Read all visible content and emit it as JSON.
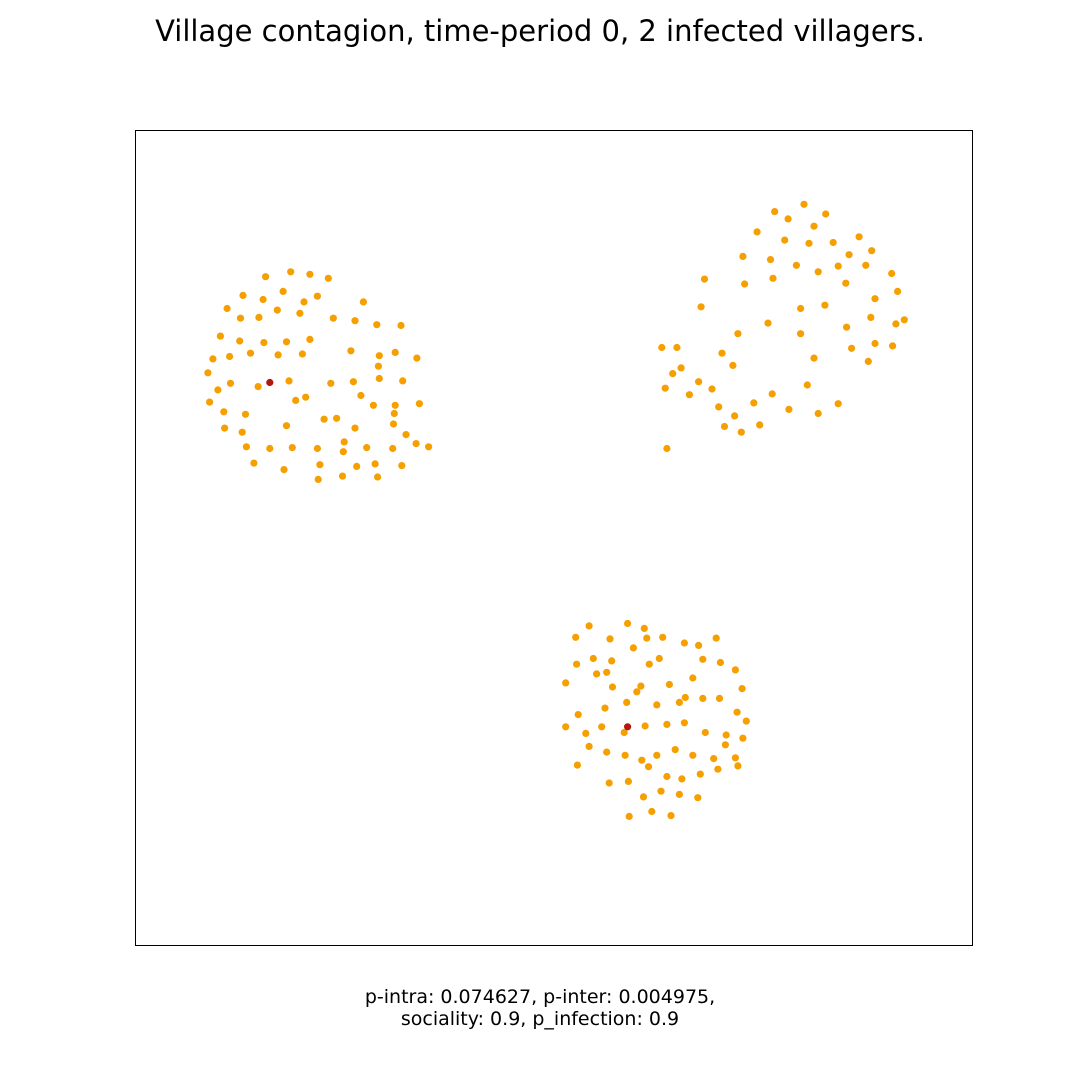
{
  "title": "Village contagion, time-period 0, 2 infected villagers.",
  "caption": {
    "line1": "p-intra: 0.074627, p-inter: 0.004975,",
    "line2": "sociality: 0.9, p_infection: 0.9"
  },
  "colors": {
    "healthy": "#f5a000",
    "infected": "#b2180e",
    "frame": "#000000"
  },
  "chart_data": {
    "type": "scatter",
    "title": "Village contagion, time-period 0, 2 infected villagers.",
    "grid": false,
    "axes_visible": false,
    "xlim": [
      0,
      100
    ],
    "ylim": [
      0,
      100
    ],
    "series": [
      {
        "name": "healthy",
        "color": "#f5a000",
        "points": [
          [
            15.5,
            82.1
          ],
          [
            18.5,
            82.7
          ],
          [
            20.8,
            82.4
          ],
          [
            23.0,
            81.9
          ],
          [
            12.8,
            79.8
          ],
          [
            15.2,
            79.3
          ],
          [
            17.6,
            80.3
          ],
          [
            20.1,
            79.0
          ],
          [
            21.7,
            79.7
          ],
          [
            10.9,
            78.2
          ],
          [
            12.5,
            77.0
          ],
          [
            14.7,
            77.1
          ],
          [
            16.9,
            78.0
          ],
          [
            19.6,
            77.6
          ],
          [
            27.2,
            79.0
          ],
          [
            10.1,
            74.8
          ],
          [
            12.4,
            74.2
          ],
          [
            15.3,
            74.0
          ],
          [
            18.0,
            74.1
          ],
          [
            20.8,
            74.4
          ],
          [
            23.6,
            77.0
          ],
          [
            26.2,
            76.7
          ],
          [
            28.8,
            76.2
          ],
          [
            31.7,
            76.1
          ],
          [
            9.2,
            72.0
          ],
          [
            11.2,
            72.3
          ],
          [
            13.7,
            72.7
          ],
          [
            17.0,
            72.5
          ],
          [
            19.9,
            72.6
          ],
          [
            25.7,
            73.0
          ],
          [
            29.1,
            72.4
          ],
          [
            31.0,
            72.8
          ],
          [
            33.6,
            72.1
          ],
          [
            8.6,
            70.3
          ],
          [
            9.8,
            68.2
          ],
          [
            11.3,
            69.0
          ],
          [
            14.6,
            68.6
          ],
          [
            18.3,
            69.3
          ],
          [
            23.3,
            69.0
          ],
          [
            26.0,
            69.2
          ],
          [
            29.1,
            69.6
          ],
          [
            31.9,
            69.3
          ],
          [
            8.8,
            66.7
          ],
          [
            10.5,
            65.5
          ],
          [
            13.1,
            65.2
          ],
          [
            19.1,
            66.9
          ],
          [
            28.4,
            66.3
          ],
          [
            31.0,
            66.3
          ],
          [
            33.9,
            66.5
          ],
          [
            10.6,
            63.5
          ],
          [
            12.7,
            63.0
          ],
          [
            26.9,
            67.5
          ],
          [
            24.0,
            64.7
          ],
          [
            14.1,
            59.2
          ],
          [
            13.2,
            61.2
          ],
          [
            16.0,
            61.0
          ],
          [
            18.0,
            63.8
          ],
          [
            18.7,
            61.1
          ],
          [
            21.7,
            61.0
          ],
          [
            24.9,
            61.8
          ],
          [
            26.2,
            63.5
          ],
          [
            24.8,
            60.6
          ],
          [
            27.6,
            61.1
          ],
          [
            30.7,
            61.0
          ],
          [
            32.3,
            62.7
          ],
          [
            30.8,
            64.0
          ],
          [
            35.0,
            61.2
          ],
          [
            33.5,
            61.6
          ],
          [
            26.4,
            58.8
          ],
          [
            28.6,
            59.1
          ],
          [
            22.0,
            59.0
          ],
          [
            17.7,
            58.4
          ],
          [
            21.8,
            57.2
          ],
          [
            24.7,
            57.6
          ],
          [
            31.8,
            58.9
          ],
          [
            30.9,
            65.3
          ],
          [
            28.9,
            57.5
          ],
          [
            22.5,
            64.6
          ],
          [
            20.3,
            67.3
          ],
          [
            29.0,
            71.1
          ],
          [
            76.4,
            90.1
          ],
          [
            79.9,
            91.0
          ],
          [
            82.5,
            89.8
          ],
          [
            78.0,
            89.2
          ],
          [
            81.1,
            88.3
          ],
          [
            74.3,
            87.6
          ],
          [
            77.6,
            86.6
          ],
          [
            80.5,
            86.2
          ],
          [
            83.4,
            86.3
          ],
          [
            86.5,
            87.0
          ],
          [
            88.0,
            85.3
          ],
          [
            85.3,
            84.8
          ],
          [
            72.6,
            84.6
          ],
          [
            75.9,
            84.2
          ],
          [
            79.0,
            83.5
          ],
          [
            81.6,
            82.7
          ],
          [
            84.0,
            83.4
          ],
          [
            87.3,
            83.5
          ],
          [
            90.4,
            82.5
          ],
          [
            68.0,
            81.8
          ],
          [
            72.8,
            81.2
          ],
          [
            76.2,
            81.9
          ],
          [
            79.5,
            78.2
          ],
          [
            82.4,
            78.6
          ],
          [
            84.9,
            81.3
          ],
          [
            88.4,
            79.4
          ],
          [
            91.1,
            80.3
          ],
          [
            67.6,
            78.4
          ],
          [
            72.0,
            75.1
          ],
          [
            75.6,
            76.4
          ],
          [
            79.5,
            75.1
          ],
          [
            85.0,
            75.9
          ],
          [
            87.9,
            77.1
          ],
          [
            90.9,
            76.3
          ],
          [
            91.9,
            76.8
          ],
          [
            85.6,
            73.3
          ],
          [
            88.4,
            73.9
          ],
          [
            90.5,
            73.6
          ],
          [
            87.6,
            71.7
          ],
          [
            81.1,
            72.1
          ],
          [
            71.4,
            71.2
          ],
          [
            65.2,
            70.9
          ],
          [
            70.1,
            72.7
          ],
          [
            62.9,
            73.4
          ],
          [
            64.7,
            73.4
          ],
          [
            63.5,
            61.0
          ],
          [
            67.3,
            69.2
          ],
          [
            63.3,
            68.4
          ],
          [
            64.2,
            70.2
          ],
          [
            66.2,
            67.6
          ],
          [
            68.9,
            68.3
          ],
          [
            69.7,
            66.1
          ],
          [
            71.6,
            65.0
          ],
          [
            73.9,
            66.6
          ],
          [
            70.4,
            63.7
          ],
          [
            76.1,
            67.7
          ],
          [
            78.1,
            65.8
          ],
          [
            80.3,
            68.8
          ],
          [
            81.6,
            65.3
          ],
          [
            84.0,
            66.5
          ],
          [
            74.6,
            63.9
          ],
          [
            72.4,
            63.0
          ],
          [
            59.0,
            15.8
          ],
          [
            61.7,
            16.4
          ],
          [
            64.0,
            15.9
          ],
          [
            60.7,
            18.2
          ],
          [
            62.8,
            18.9
          ],
          [
            65.0,
            18.5
          ],
          [
            67.2,
            18.1
          ],
          [
            56.6,
            19.9
          ],
          [
            58.9,
            20.1
          ],
          [
            61.3,
            21.9
          ],
          [
            63.5,
            20.7
          ],
          [
            65.3,
            20.4
          ],
          [
            67.5,
            21.0
          ],
          [
            69.6,
            21.6
          ],
          [
            72.0,
            22.0
          ],
          [
            52.8,
            22.1
          ],
          [
            54.2,
            24.4
          ],
          [
            56.3,
            23.7
          ],
          [
            58.5,
            23.3
          ],
          [
            60.5,
            22.7
          ],
          [
            62.3,
            23.3
          ],
          [
            64.5,
            24.0
          ],
          [
            66.6,
            23.3
          ],
          [
            69.1,
            22.9
          ],
          [
            71.7,
            23.0
          ],
          [
            51.4,
            26.8
          ],
          [
            53.8,
            26.0
          ],
          [
            55.7,
            26.8
          ],
          [
            58.4,
            26.1
          ],
          [
            60.9,
            26.9
          ],
          [
            63.5,
            27.1
          ],
          [
            65.6,
            27.3
          ],
          [
            68.1,
            26.1
          ],
          [
            70.6,
            25.8
          ],
          [
            72.6,
            25.4
          ],
          [
            73.0,
            27.5
          ],
          [
            52.9,
            28.3
          ],
          [
            56.1,
            29.1
          ],
          [
            58.7,
            29.8
          ],
          [
            60.4,
            31.8
          ],
          [
            62.3,
            29.5
          ],
          [
            65.0,
            29.8
          ],
          [
            67.8,
            30.3
          ],
          [
            69.8,
            30.3
          ],
          [
            72.5,
            31.5
          ],
          [
            71.9,
            28.6
          ],
          [
            51.4,
            32.2
          ],
          [
            52.7,
            34.5
          ],
          [
            55.1,
            33.3
          ],
          [
            57.0,
            31.7
          ],
          [
            59.9,
            31.1
          ],
          [
            63.8,
            32.0
          ],
          [
            66.6,
            32.8
          ],
          [
            69.9,
            34.7
          ],
          [
            52.6,
            37.8
          ],
          [
            54.2,
            39.2
          ],
          [
            56.7,
            37.6
          ],
          [
            58.8,
            39.5
          ],
          [
            60.8,
            38.9
          ],
          [
            63.0,
            37.8
          ],
          [
            65.6,
            37.1
          ],
          [
            67.3,
            36.8
          ],
          [
            69.4,
            37.7
          ],
          [
            71.7,
            33.8
          ],
          [
            70.5,
            24.6
          ],
          [
            54.7,
            35.2
          ],
          [
            56.9,
            34.9
          ],
          [
            59.5,
            36.5
          ],
          [
            61.1,
            37.7
          ],
          [
            62.6,
            35.2
          ],
          [
            67.8,
            35.1
          ],
          [
            56.3,
            33.5
          ],
          [
            65.7,
            30.4
          ],
          [
            61.4,
            34.5
          ]
        ]
      },
      {
        "name": "infected",
        "color": "#b2180e",
        "points": [
          [
            16.0,
            69.1
          ],
          [
            58.8,
            26.8
          ]
        ]
      }
    ]
  }
}
